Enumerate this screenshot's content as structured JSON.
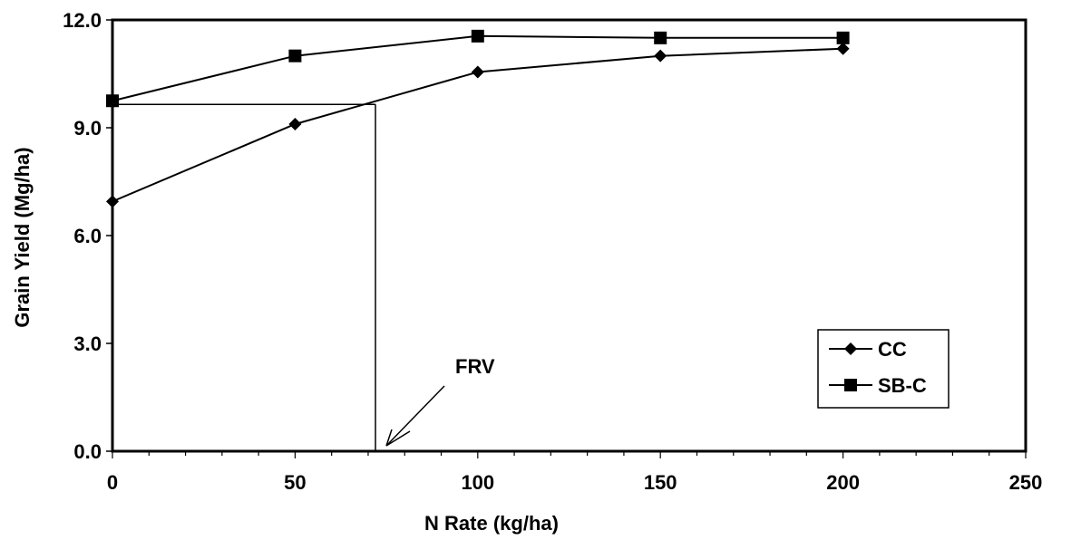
{
  "chart_data": {
    "type": "line",
    "title": "",
    "xlabel": "N Rate (kg/ha)",
    "ylabel": "Grain Yield (Mg/ha)",
    "xlim": [
      0,
      250
    ],
    "ylim": [
      0,
      12
    ],
    "x_ticks": [
      "0",
      "50",
      "100",
      "150",
      "200",
      "250"
    ],
    "y_ticks": [
      "0.0",
      "3.0",
      "6.0",
      "9.0",
      "12.0"
    ],
    "grid": false,
    "legend_position": "bottom-right",
    "series": [
      {
        "name": "CC",
        "marker": "diamond",
        "color": "#000000",
        "x": [
          0,
          50,
          100,
          150,
          200
        ],
        "values": [
          6.95,
          9.1,
          10.55,
          11.0,
          11.2
        ]
      },
      {
        "name": "SB-C",
        "marker": "square",
        "color": "#000000",
        "x": [
          0,
          50,
          100,
          150,
          200
        ],
        "values": [
          9.75,
          11.0,
          11.55,
          11.5,
          11.5
        ]
      }
    ],
    "annotation": {
      "text": "FRV",
      "reference_yield": 9.65,
      "frv_n_rate": 72
    }
  }
}
